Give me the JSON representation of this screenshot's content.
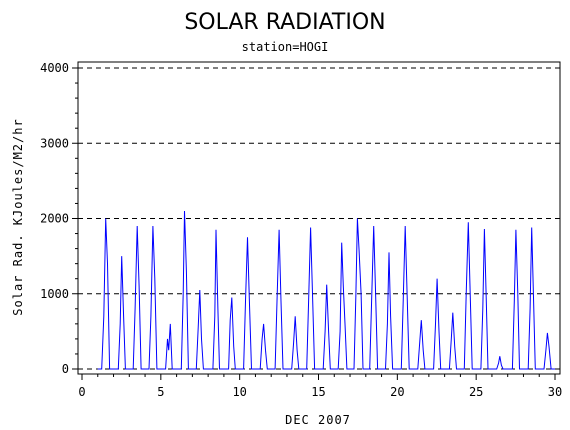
{
  "chart_data": {
    "type": "line",
    "title": "SOLAR RADIATION",
    "subtitle": "station=HOGI",
    "xlabel": "DEC 2007",
    "ylabel": "Solar Rad. KJoules/M2/hr",
    "xlim": [
      0,
      30
    ],
    "ylim": [
      0,
      4000
    ],
    "x_ticks": [
      0,
      5,
      10,
      15,
      20,
      25,
      30
    ],
    "x_tick_labels": [
      "0",
      "5",
      "10",
      "15",
      "20",
      "25",
      "30"
    ],
    "y_ticks": [
      0,
      1000,
      2000,
      3000,
      4000
    ],
    "y_tick_labels": [
      "0",
      "1000",
      "2000",
      "3000",
      "4000"
    ],
    "gridlines": "horizontal dashed",
    "series_color": "#0000ff",
    "series": [
      {
        "points": [
          [
            1.0,
            0
          ],
          [
            1.25,
            0
          ],
          [
            1.38,
            700
          ],
          [
            1.5,
            2000
          ],
          [
            1.62,
            1400
          ],
          [
            1.75,
            0
          ],
          [
            2.3,
            0
          ],
          [
            2.42,
            600
          ],
          [
            2.52,
            1500
          ],
          [
            2.64,
            700
          ],
          [
            2.75,
            0
          ],
          [
            3.25,
            0
          ],
          [
            3.37,
            800
          ],
          [
            3.5,
            1900
          ],
          [
            3.62,
            1100
          ],
          [
            3.75,
            0
          ],
          [
            4.25,
            0
          ],
          [
            4.37,
            700
          ],
          [
            4.5,
            1900
          ],
          [
            4.62,
            1200
          ],
          [
            4.75,
            0
          ],
          [
            5.3,
            0
          ],
          [
            5.42,
            400
          ],
          [
            5.5,
            250
          ],
          [
            5.6,
            600
          ],
          [
            5.72,
            0
          ],
          [
            6.3,
            0
          ],
          [
            6.42,
            1000
          ],
          [
            6.5,
            2100
          ],
          [
            6.62,
            1300
          ],
          [
            6.75,
            0
          ],
          [
            7.25,
            0
          ],
          [
            7.37,
            550
          ],
          [
            7.47,
            1050
          ],
          [
            7.58,
            400
          ],
          [
            7.7,
            0
          ],
          [
            8.3,
            0
          ],
          [
            8.42,
            700
          ],
          [
            8.5,
            1850
          ],
          [
            8.62,
            800
          ],
          [
            8.72,
            0
          ],
          [
            9.3,
            0
          ],
          [
            9.4,
            650
          ],
          [
            9.5,
            950
          ],
          [
            9.62,
            300
          ],
          [
            9.72,
            0
          ],
          [
            10.25,
            0
          ],
          [
            10.37,
            900
          ],
          [
            10.5,
            1750
          ],
          [
            10.62,
            900
          ],
          [
            10.75,
            0
          ],
          [
            11.3,
            0
          ],
          [
            11.42,
            400
          ],
          [
            11.52,
            600
          ],
          [
            11.64,
            250
          ],
          [
            11.75,
            0
          ],
          [
            12.25,
            0
          ],
          [
            12.37,
            900
          ],
          [
            12.5,
            1850
          ],
          [
            12.62,
            900
          ],
          [
            12.75,
            0
          ],
          [
            13.3,
            0
          ],
          [
            13.42,
            350
          ],
          [
            13.52,
            700
          ],
          [
            13.64,
            250
          ],
          [
            13.75,
            0
          ],
          [
            14.25,
            0
          ],
          [
            14.37,
            900
          ],
          [
            14.5,
            1880
          ],
          [
            14.62,
            1000
          ],
          [
            14.75,
            0
          ],
          [
            15.3,
            0
          ],
          [
            15.42,
            500
          ],
          [
            15.52,
            1120
          ],
          [
            15.64,
            500
          ],
          [
            15.75,
            0
          ],
          [
            16.25,
            0
          ],
          [
            16.37,
            500
          ],
          [
            16.47,
            1680
          ],
          [
            16.57,
            1100
          ],
          [
            16.68,
            600
          ],
          [
            16.8,
            0
          ],
          [
            17.25,
            0
          ],
          [
            17.37,
            1000
          ],
          [
            17.47,
            2000
          ],
          [
            17.57,
            1600
          ],
          [
            17.7,
            1000
          ],
          [
            17.82,
            0
          ],
          [
            18.25,
            0
          ],
          [
            18.37,
            900
          ],
          [
            18.5,
            1900
          ],
          [
            18.62,
            1000
          ],
          [
            18.75,
            0
          ],
          [
            19.25,
            0
          ],
          [
            19.37,
            600
          ],
          [
            19.47,
            1550
          ],
          [
            19.57,
            700
          ],
          [
            19.7,
            0
          ],
          [
            20.25,
            0
          ],
          [
            20.37,
            900
          ],
          [
            20.5,
            1900
          ],
          [
            20.62,
            1000
          ],
          [
            20.75,
            0
          ],
          [
            21.3,
            0
          ],
          [
            21.42,
            350
          ],
          [
            21.52,
            650
          ],
          [
            21.64,
            250
          ],
          [
            21.75,
            0
          ],
          [
            22.3,
            0
          ],
          [
            22.42,
            600
          ],
          [
            22.52,
            1200
          ],
          [
            22.64,
            500
          ],
          [
            22.75,
            0
          ],
          [
            23.3,
            0
          ],
          [
            23.42,
            400
          ],
          [
            23.52,
            750
          ],
          [
            23.64,
            300
          ],
          [
            23.75,
            0
          ],
          [
            24.25,
            0
          ],
          [
            24.37,
            1000
          ],
          [
            24.5,
            1950
          ],
          [
            24.62,
            1000
          ],
          [
            24.75,
            0
          ],
          [
            25.3,
            0
          ],
          [
            25.42,
            800
          ],
          [
            25.52,
            1860
          ],
          [
            25.64,
            900
          ],
          [
            25.75,
            0
          ],
          [
            26.3,
            0
          ],
          [
            26.42,
            80
          ],
          [
            26.5,
            170
          ],
          [
            26.6,
            50
          ],
          [
            26.7,
            0
          ],
          [
            27.3,
            0
          ],
          [
            27.42,
            900
          ],
          [
            27.52,
            1850
          ],
          [
            27.64,
            1000
          ],
          [
            27.75,
            0
          ],
          [
            28.3,
            0
          ],
          [
            28.42,
            800
          ],
          [
            28.52,
            1880
          ],
          [
            28.64,
            900
          ],
          [
            28.75,
            0
          ],
          [
            29.3,
            0
          ],
          [
            29.42,
            250
          ],
          [
            29.52,
            480
          ],
          [
            29.62,
            300
          ],
          [
            29.75,
            0
          ],
          [
            30.0,
            0
          ]
        ]
      }
    ]
  }
}
